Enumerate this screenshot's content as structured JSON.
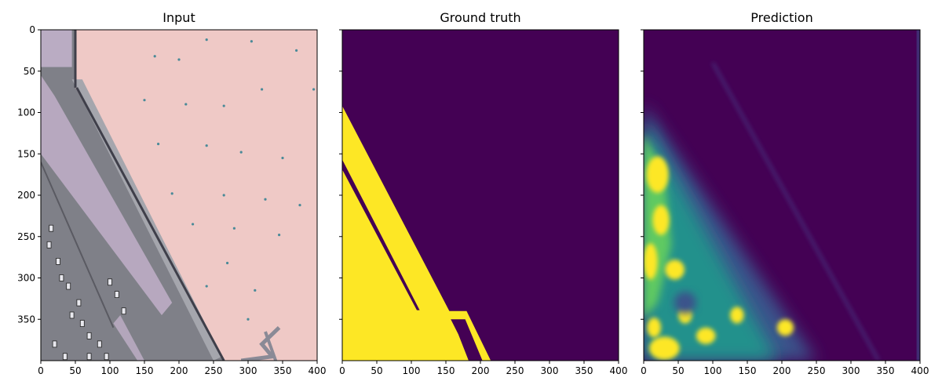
{
  "chart_data": [
    {
      "type": "heatmap",
      "title": "Input",
      "xlim": [
        0,
        400
      ],
      "ylim": [
        400,
        0
      ],
      "xticks": [
        0,
        50,
        100,
        150,
        200,
        250,
        300,
        350,
        400
      ],
      "yticks": [
        0,
        50,
        100,
        150,
        200,
        250,
        300,
        350
      ],
      "y_tick_labels_shown": true,
      "image_description": "aerial view: highway with cars along lower-left, pink rooftop on the right",
      "palette": {
        "roof": "#efc9c6",
        "road": "#7f8088",
        "road_light": "#a5a6ad",
        "lavender": "#c9b6d2",
        "rail": "#3f3f4a"
      }
    },
    {
      "type": "heatmap",
      "title": "Ground truth",
      "xlim": [
        0,
        400
      ],
      "ylim": [
        400,
        0
      ],
      "xticks": [
        0,
        50,
        100,
        150,
        200,
        250,
        300,
        350,
        400
      ],
      "yticks": [
        0,
        50,
        100,
        150,
        200,
        250,
        300,
        350
      ],
      "y_tick_labels_shown": false,
      "classes": [
        {
          "value": 0,
          "color": "#440154"
        },
        {
          "value": 1,
          "color": "#fde725"
        }
      ],
      "region_value1_polygon": [
        [
          0,
          92
        ],
        [
          155,
          340
        ],
        [
          180,
          340
        ],
        [
          215,
          400
        ],
        [
          0,
          400
        ]
      ],
      "gap_strip_polygon": [
        [
          0,
          157
        ],
        [
          0,
          169
        ],
        [
          108,
          339
        ],
        [
          112,
          339
        ]
      ],
      "notch_polygon": [
        [
          157,
          350
        ],
        [
          178,
          350
        ],
        [
          203,
          400
        ],
        [
          183,
          400
        ],
        [
          168,
          368
        ]
      ]
    },
    {
      "type": "heatmap",
      "title": "Prediction",
      "xlim": [
        0,
        400
      ],
      "ylim": [
        400,
        0
      ],
      "xticks": [
        0,
        50,
        100,
        150,
        200,
        250,
        300,
        350,
        400
      ],
      "yticks": [
        0,
        50,
        100,
        150,
        200,
        250,
        300,
        350
      ],
      "y_tick_labels_shown": false,
      "colormap": "viridis",
      "color_low": "#440154",
      "color_high": "#fde725"
    }
  ]
}
